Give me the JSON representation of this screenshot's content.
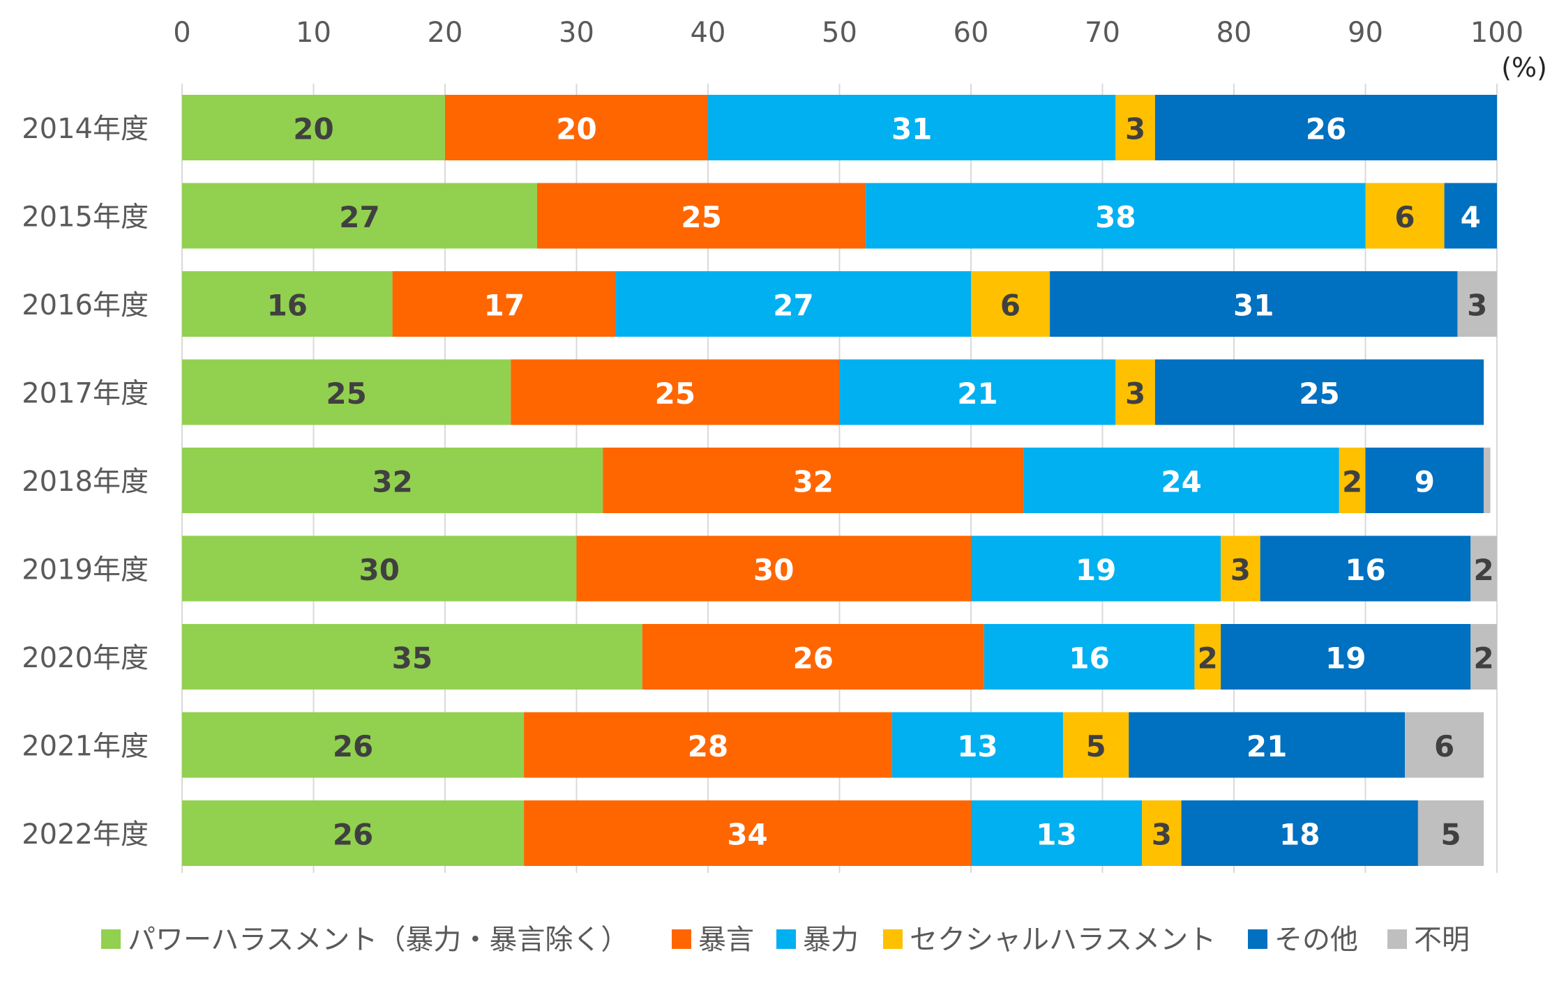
{
  "chart_data": {
    "type": "bar",
    "orientation": "horizontal",
    "stacked": true,
    "title": "",
    "xlabel": "",
    "ylabel": "",
    "unit_label": "(%)",
    "xlim": [
      0,
      100
    ],
    "x_ticks": [
      0,
      10,
      20,
      30,
      40,
      50,
      60,
      70,
      80,
      90,
      100
    ],
    "grid": true,
    "legend_position": "bottom",
    "categories": [
      "2014年度",
      "2015年度",
      "2016年度",
      "2017年度",
      "2018年度",
      "2019年度",
      "2020年度",
      "2021年度",
      "2022年度"
    ],
    "series": [
      {
        "name": "パワーハラスメント（暴力・暴言除く）",
        "color": "#92D050",
        "label_color": "#404040",
        "values": [
          20,
          27,
          16,
          25,
          32,
          30,
          35,
          26,
          26
        ],
        "labels": [
          "20",
          "27",
          "16",
          "25",
          "32",
          "30",
          "35",
          "26",
          "26"
        ]
      },
      {
        "name": "暴言",
        "color": "#FF6600",
        "label_color": "#FFFFFF",
        "values": [
          20,
          25,
          17,
          25,
          32,
          30,
          26,
          28,
          34
        ],
        "labels": [
          "20",
          "25",
          "17",
          "25",
          "32",
          "30",
          "26",
          "28",
          "34"
        ]
      },
      {
        "name": "暴力",
        "color": "#00B0F0",
        "label_color": "#FFFFFF",
        "values": [
          31,
          38,
          27,
          21,
          24,
          19,
          16,
          13,
          13
        ],
        "labels": [
          "31",
          "38",
          "27",
          "21",
          "24",
          "19",
          "16",
          "13",
          "13"
        ]
      },
      {
        "name": "セクシャルハラスメント",
        "color": "#FFC000",
        "label_color": "#404040",
        "values": [
          3,
          6,
          6,
          3,
          2,
          3,
          2,
          5,
          3
        ],
        "labels": [
          "3",
          "6",
          "6",
          "3",
          "2",
          "3",
          "2",
          "5",
          "3"
        ]
      },
      {
        "name": "その他",
        "color": "#0070C0",
        "label_color": "#FFFFFF",
        "values": [
          26,
          4,
          31,
          25,
          9,
          16,
          19,
          21,
          18
        ],
        "labels": [
          "26",
          "4",
          "31",
          "25",
          "9",
          "16",
          "19",
          "21",
          "18"
        ]
      },
      {
        "name": "不明",
        "color": "#BFBFBF",
        "label_color": "#404040",
        "values": [
          0,
          0,
          3,
          0,
          0.5,
          2,
          2,
          6,
          5
        ],
        "labels": [
          "",
          "",
          "3",
          "",
          "",
          "2",
          "2",
          "6",
          "5"
        ]
      }
    ]
  }
}
